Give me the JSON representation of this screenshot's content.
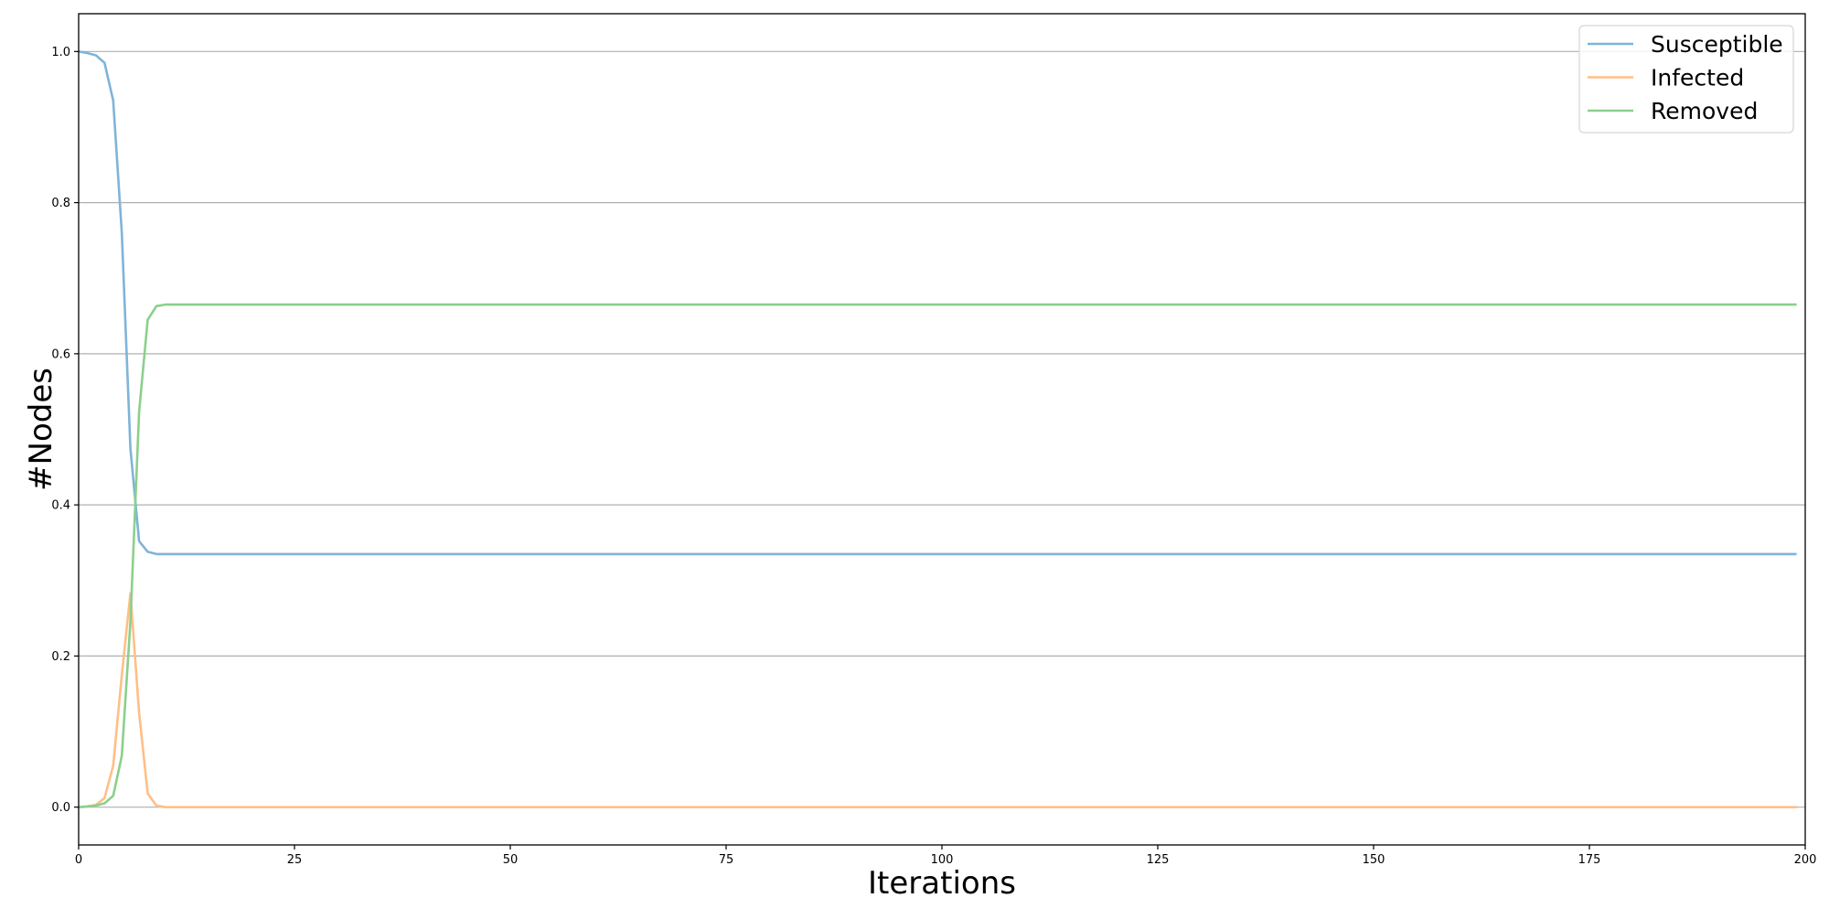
{
  "chart_data": {
    "type": "line",
    "title": "",
    "xlabel": "Iterations",
    "ylabel": "#Nodes",
    "xlim": [
      0,
      200
    ],
    "ylim": [
      -0.05,
      1.05
    ],
    "xticks": [
      0,
      25,
      50,
      75,
      100,
      125,
      150,
      175,
      200
    ],
    "xtick_labels": [
      "0",
      "25",
      "50",
      "75",
      "100",
      "125",
      "150",
      "175",
      "200"
    ],
    "yticks": [
      0.0,
      0.2,
      0.4,
      0.6,
      0.8,
      1.0
    ],
    "ytick_labels": [
      "0.0",
      "0.2",
      "0.4",
      "0.6",
      "0.8",
      "1.0"
    ],
    "grid": "horizontal",
    "legend_position": "top-right",
    "series": [
      {
        "name": "Susceptible",
        "color": "#7fb4d9",
        "x": [
          0,
          1,
          2,
          3,
          4,
          5,
          6,
          7,
          8,
          9,
          10,
          11,
          15,
          20,
          50,
          100,
          150,
          199
        ],
        "y": [
          1.0,
          0.998,
          0.995,
          0.985,
          0.935,
          0.76,
          0.475,
          0.352,
          0.338,
          0.335,
          0.335,
          0.335,
          0.335,
          0.335,
          0.335,
          0.335,
          0.335,
          0.335
        ]
      },
      {
        "name": "Infected",
        "color": "#ffbf86",
        "x": [
          0,
          1,
          2,
          3,
          4,
          5,
          6,
          7,
          8,
          9,
          10,
          11,
          15,
          20,
          50,
          100,
          150,
          199
        ],
        "y": [
          0.0,
          0.001,
          0.003,
          0.012,
          0.055,
          0.175,
          0.283,
          0.125,
          0.018,
          0.002,
          0.0,
          0.0,
          0.0,
          0.0,
          0.0,
          0.0,
          0.0,
          0.0
        ]
      },
      {
        "name": "Removed",
        "color": "#8ccf8c",
        "x": [
          0,
          1,
          2,
          3,
          4,
          5,
          6,
          7,
          8,
          9,
          10,
          11,
          15,
          20,
          50,
          100,
          150,
          199
        ],
        "y": [
          0.0,
          0.001,
          0.002,
          0.005,
          0.015,
          0.068,
          0.245,
          0.523,
          0.645,
          0.663,
          0.665,
          0.665,
          0.665,
          0.665,
          0.665,
          0.665,
          0.665,
          0.665
        ]
      }
    ]
  }
}
